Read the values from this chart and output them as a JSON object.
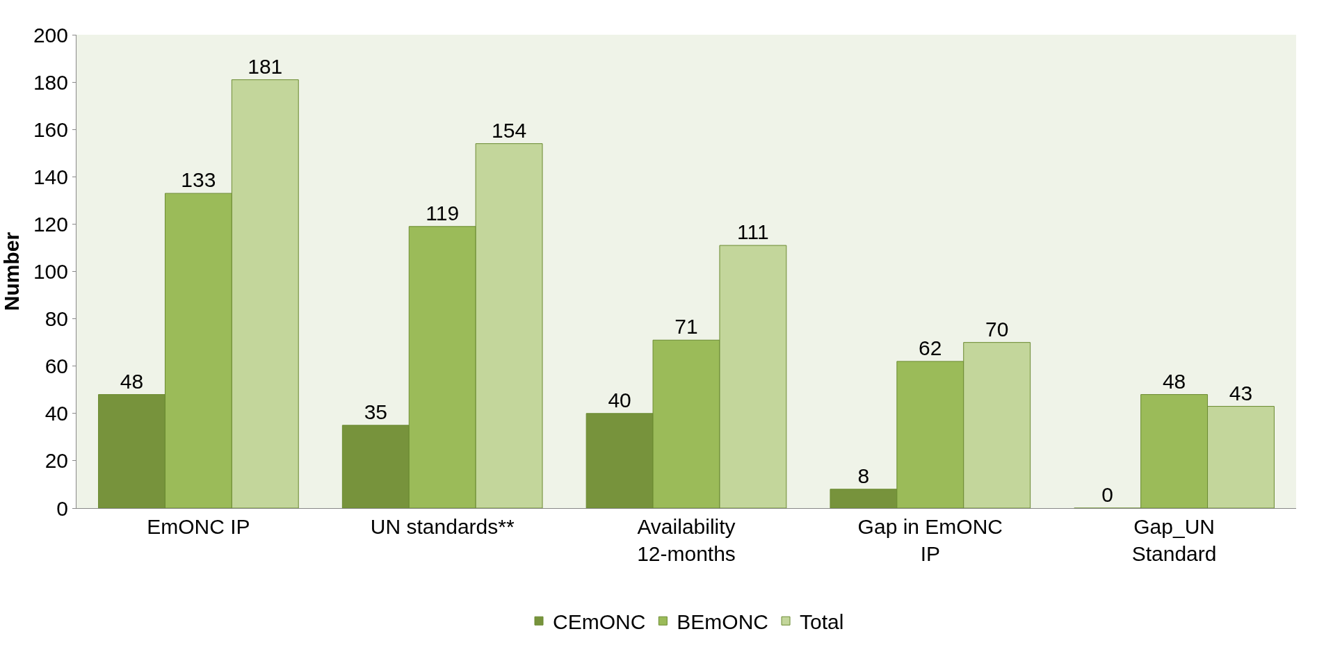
{
  "chart_data": {
    "type": "bar",
    "ylabel": "Number",
    "categories": [
      "EmONC IP",
      "UN standards**",
      "Availability 12-months",
      "Gap in EmONC IP",
      "Gap_UN Standard"
    ],
    "series": [
      {
        "name": "CEmONC",
        "color": "#77933c",
        "values": [
          48,
          35,
          40,
          8,
          0
        ]
      },
      {
        "name": "BEmONC",
        "color": "#9bbb59",
        "values": [
          133,
          119,
          71,
          62,
          48
        ]
      },
      {
        "name": "Total",
        "color": "#c3d69b",
        "values": [
          181,
          154,
          111,
          70,
          43
        ]
      }
    ],
    "ylim": [
      0,
      200
    ],
    "yticks": [
      0,
      20,
      40,
      60,
      80,
      100,
      120,
      140,
      160,
      180,
      200
    ],
    "data_labels": true,
    "grid": false,
    "legend": "bottom"
  }
}
